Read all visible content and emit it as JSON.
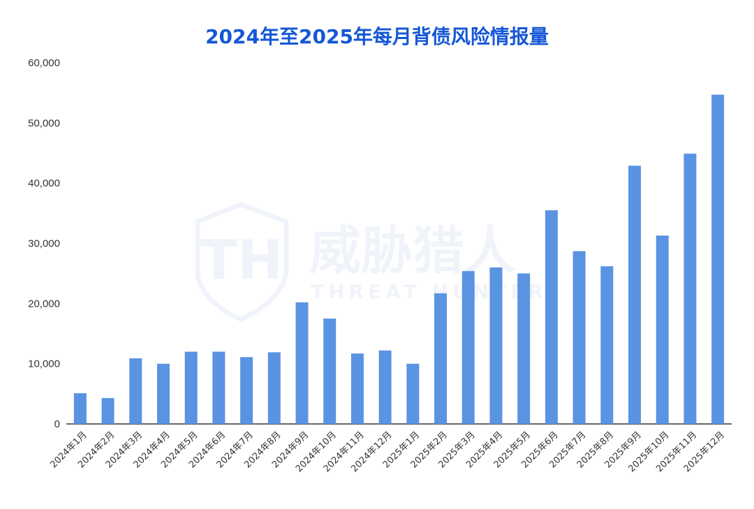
{
  "watermark": {
    "cn": "威胁猎人",
    "en": "THREAT HUNTER",
    "logo_letters": "TH"
  },
  "chart_data": {
    "type": "bar",
    "title": "2024年至2025年每月背债风险情报量",
    "xlabel": "",
    "ylabel": "",
    "ylim": [
      0,
      60000
    ],
    "yticks": [
      0,
      10000,
      20000,
      30000,
      40000,
      50000,
      60000
    ],
    "ytick_labels": [
      "0",
      "10,000",
      "20,000",
      "30,000",
      "40,000",
      "50,000",
      "60,000"
    ],
    "grid": false,
    "bar_color": "#5b93e3",
    "title_color": "#1557d6",
    "categories": [
      "2024年1月",
      "2024年2月",
      "2024年3月",
      "2024年4月",
      "2024年5月",
      "2024年6月",
      "2024年7月",
      "2024年8月",
      "2024年9月",
      "2024年10月",
      "2024年11月",
      "2024年12月",
      "2025年1月",
      "2025年2月",
      "2025年3月",
      "2025年4月",
      "2025年5月",
      "2025年6月",
      "2025年7月",
      "2025年8月",
      "2025年9月",
      "2025年10月",
      "2025年11月",
      "2025年12月"
    ],
    "values": [
      5100,
      4300,
      10900,
      10000,
      12000,
      12000,
      11100,
      11900,
      20200,
      17500,
      11700,
      12200,
      10000,
      21700,
      25400,
      26000,
      25000,
      35500,
      28700,
      26200,
      42900,
      31300,
      44900,
      54700
    ]
  }
}
